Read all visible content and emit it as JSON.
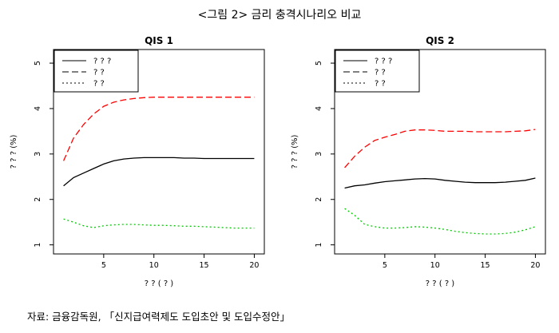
{
  "figure": {
    "title": "<그림 2> 금리 충격시나리오 비교",
    "source": "자료: 금융감독원, 「신지급여력제도 도입초안 및 도입수정안」"
  },
  "chart_data": [
    {
      "type": "line",
      "title": "QIS 1",
      "xlabel": "? ? ( ? )",
      "ylabel": "? ? ? (%)",
      "xlim": [
        0,
        21
      ],
      "ylim": [
        0.8,
        5.3
      ],
      "xticks": [
        5,
        10,
        15,
        20
      ],
      "yticks": [
        1,
        2,
        3,
        4,
        5
      ],
      "legend_position": "top-left",
      "series": [
        {
          "name": "? ? ?",
          "style": "solid",
          "color": "#000000",
          "x": [
            1,
            2,
            3,
            4,
            5,
            6,
            7,
            8,
            9,
            10,
            11,
            12,
            13,
            14,
            15,
            16,
            17,
            18,
            19,
            20
          ],
          "y": [
            2.3,
            2.48,
            2.58,
            2.68,
            2.78,
            2.85,
            2.89,
            2.91,
            2.92,
            2.92,
            2.92,
            2.92,
            2.91,
            2.91,
            2.9,
            2.9,
            2.9,
            2.9,
            2.9,
            2.9
          ]
        },
        {
          "name": "? ?",
          "style": "dashed",
          "color": "#ff0000",
          "x": [
            1,
            2,
            3,
            4,
            5,
            6,
            7,
            8,
            9,
            10,
            11,
            12,
            13,
            14,
            15,
            16,
            17,
            18,
            19,
            20
          ],
          "y": [
            2.85,
            3.35,
            3.65,
            3.88,
            4.05,
            4.14,
            4.19,
            4.22,
            4.24,
            4.25,
            4.25,
            4.25,
            4.25,
            4.25,
            4.25,
            4.25,
            4.25,
            4.25,
            4.25,
            4.25
          ]
        },
        {
          "name": "? ?",
          "style": "dotted",
          "color": "#00cc00",
          "x": [
            1,
            2,
            3,
            4,
            5,
            6,
            7,
            8,
            9,
            10,
            11,
            12,
            13,
            14,
            15,
            16,
            17,
            18,
            19,
            20
          ],
          "y": [
            1.57,
            1.5,
            1.42,
            1.38,
            1.42,
            1.44,
            1.45,
            1.45,
            1.44,
            1.43,
            1.43,
            1.42,
            1.41,
            1.41,
            1.4,
            1.39,
            1.38,
            1.37,
            1.37,
            1.37
          ]
        }
      ]
    },
    {
      "type": "line",
      "title": "QIS 2",
      "xlabel": "? ? ( ? )",
      "ylabel": "? ? ? (%)",
      "xlim": [
        0,
        21
      ],
      "ylim": [
        0.8,
        5.3
      ],
      "xticks": [
        5,
        10,
        15,
        20
      ],
      "yticks": [
        1,
        2,
        3,
        4,
        5
      ],
      "legend_position": "top-left",
      "series": [
        {
          "name": "? ? ?",
          "style": "solid",
          "color": "#000000",
          "x": [
            1,
            2,
            3,
            4,
            5,
            6,
            7,
            8,
            9,
            10,
            11,
            12,
            13,
            14,
            15,
            16,
            17,
            18,
            19,
            20
          ],
          "y": [
            2.25,
            2.3,
            2.32,
            2.36,
            2.39,
            2.41,
            2.43,
            2.45,
            2.46,
            2.45,
            2.42,
            2.4,
            2.38,
            2.37,
            2.37,
            2.37,
            2.38,
            2.4,
            2.42,
            2.47
          ]
        },
        {
          "name": "? ?",
          "style": "dashed",
          "color": "#ff0000",
          "x": [
            1,
            2,
            3,
            4,
            5,
            6,
            7,
            8,
            9,
            10,
            11,
            12,
            13,
            14,
            15,
            16,
            17,
            18,
            19,
            20
          ],
          "y": [
            2.7,
            2.95,
            3.15,
            3.3,
            3.37,
            3.43,
            3.5,
            3.53,
            3.53,
            3.52,
            3.5,
            3.5,
            3.5,
            3.49,
            3.49,
            3.49,
            3.49,
            3.5,
            3.51,
            3.54
          ]
        },
        {
          "name": "? ?",
          "style": "dotted",
          "color": "#00cc00",
          "x": [
            1,
            2,
            3,
            4,
            5,
            6,
            7,
            8,
            9,
            10,
            11,
            12,
            13,
            14,
            15,
            16,
            17,
            18,
            19,
            20
          ],
          "y": [
            1.8,
            1.65,
            1.45,
            1.4,
            1.37,
            1.37,
            1.38,
            1.4,
            1.39,
            1.37,
            1.34,
            1.3,
            1.27,
            1.25,
            1.24,
            1.24,
            1.25,
            1.28,
            1.33,
            1.4
          ]
        }
      ]
    }
  ]
}
